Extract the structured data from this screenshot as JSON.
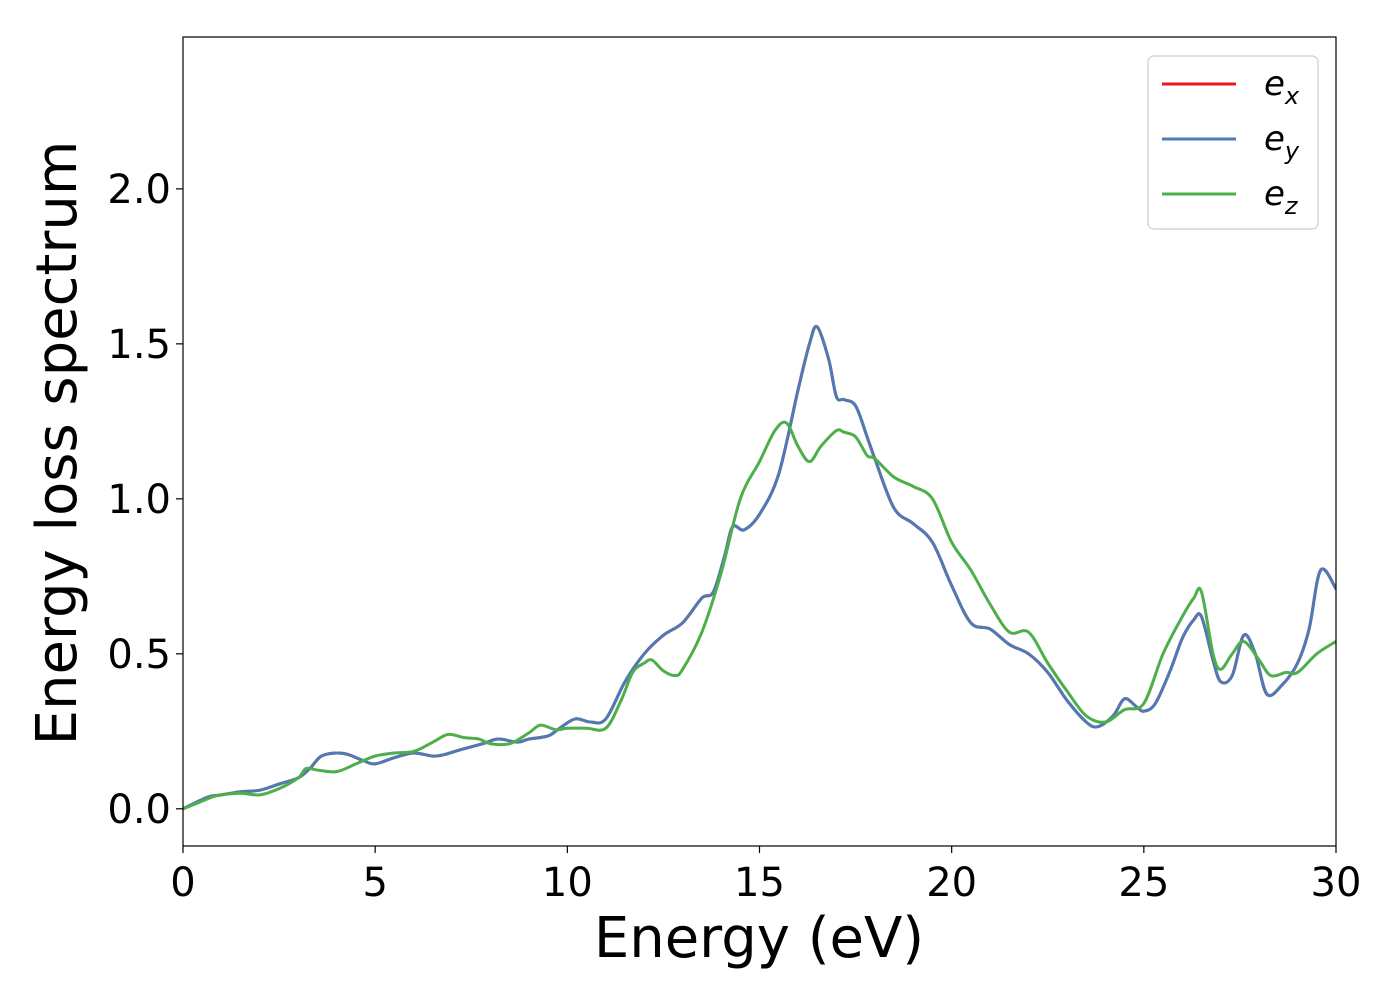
{
  "chart_data": {
    "type": "line",
    "xlabel": "Energy (eV)",
    "ylabel": "Energy loss spectrum",
    "xlim": [
      0,
      30
    ],
    "ylim": [
      -0.12,
      2.49
    ],
    "xticks": [
      0,
      5,
      10,
      15,
      20,
      25,
      30
    ],
    "yticks": [
      0.0,
      0.5,
      1.0,
      1.5,
      2.0
    ],
    "xtick_labels": [
      "0",
      "5",
      "10",
      "15",
      "20",
      "25",
      "30"
    ],
    "ytick_labels": [
      "0.0",
      "0.5",
      "1.0",
      "1.5",
      "2.0"
    ],
    "grid": false,
    "legend_position": "top-right",
    "series": [
      {
        "name": "e",
        "subscript": "x",
        "color": "#e41a1c",
        "x": [
          0,
          0.5,
          0.7,
          1.0,
          1.5,
          2.0,
          2.5,
          3.0,
          3.3,
          3.6,
          4.0,
          4.3,
          4.7,
          5.0,
          5.5,
          6.0,
          6.5,
          6.8,
          7.2,
          7.8,
          8.2,
          8.7,
          9.0,
          9.5,
          9.8,
          10.2,
          10.6,
          11.0,
          11.5,
          12.0,
          12.5,
          13.0,
          13.5,
          13.8,
          14.1,
          14.3,
          14.6,
          15.0,
          15.5,
          16.0,
          16.3,
          16.5,
          16.8,
          17.0,
          17.2,
          17.5,
          17.8,
          18.0,
          18.5,
          19.0,
          19.5,
          20.0,
          20.5,
          21.0,
          21.5,
          22.0,
          22.5,
          23.0,
          23.5,
          23.8,
          24.2,
          24.5,
          24.8,
          25.0,
          25.3,
          25.7,
          26.0,
          26.3,
          26.5,
          26.8,
          27.0,
          27.3,
          27.6,
          27.9,
          28.2,
          28.6,
          29.0,
          29.3,
          29.6,
          30.0
        ],
        "y": [
          0.0,
          0.03,
          0.04,
          0.045,
          0.055,
          0.06,
          0.08,
          0.1,
          0.13,
          0.17,
          0.18,
          0.175,
          0.155,
          0.145,
          0.165,
          0.18,
          0.17,
          0.175,
          0.19,
          0.21,
          0.225,
          0.215,
          0.225,
          0.235,
          0.26,
          0.29,
          0.28,
          0.29,
          0.41,
          0.5,
          0.56,
          0.6,
          0.68,
          0.7,
          0.82,
          0.91,
          0.9,
          0.95,
          1.08,
          1.35,
          1.5,
          1.555,
          1.45,
          1.33,
          1.32,
          1.3,
          1.2,
          1.13,
          0.97,
          0.92,
          0.86,
          0.72,
          0.6,
          0.58,
          0.53,
          0.5,
          0.44,
          0.35,
          0.28,
          0.265,
          0.3,
          0.355,
          0.33,
          0.315,
          0.34,
          0.45,
          0.55,
          0.61,
          0.62,
          0.48,
          0.41,
          0.43,
          0.56,
          0.5,
          0.37,
          0.4,
          0.47,
          0.58,
          0.77,
          0.71
        ]
      },
      {
        "name": "e",
        "subscript": "y",
        "color": "#4e7ab5",
        "x": [
          0,
          0.5,
          0.7,
          1.0,
          1.5,
          2.0,
          2.5,
          3.0,
          3.3,
          3.6,
          4.0,
          4.3,
          4.7,
          5.0,
          5.5,
          6.0,
          6.5,
          6.8,
          7.2,
          7.8,
          8.2,
          8.7,
          9.0,
          9.5,
          9.8,
          10.2,
          10.6,
          11.0,
          11.5,
          12.0,
          12.5,
          13.0,
          13.5,
          13.8,
          14.1,
          14.3,
          14.6,
          15.0,
          15.5,
          16.0,
          16.3,
          16.5,
          16.8,
          17.0,
          17.2,
          17.5,
          17.8,
          18.0,
          18.5,
          19.0,
          19.5,
          20.0,
          20.5,
          21.0,
          21.5,
          22.0,
          22.5,
          23.0,
          23.5,
          23.8,
          24.2,
          24.5,
          24.8,
          25.0,
          25.3,
          25.7,
          26.0,
          26.3,
          26.5,
          26.8,
          27.0,
          27.3,
          27.6,
          27.9,
          28.2,
          28.6,
          29.0,
          29.3,
          29.6,
          30.0
        ],
        "y": [
          0.0,
          0.03,
          0.04,
          0.045,
          0.055,
          0.06,
          0.08,
          0.1,
          0.13,
          0.17,
          0.18,
          0.175,
          0.155,
          0.145,
          0.165,
          0.18,
          0.17,
          0.175,
          0.19,
          0.21,
          0.225,
          0.215,
          0.225,
          0.235,
          0.26,
          0.29,
          0.28,
          0.29,
          0.41,
          0.5,
          0.56,
          0.6,
          0.68,
          0.7,
          0.82,
          0.91,
          0.9,
          0.95,
          1.08,
          1.35,
          1.5,
          1.555,
          1.45,
          1.33,
          1.32,
          1.3,
          1.2,
          1.13,
          0.97,
          0.92,
          0.86,
          0.72,
          0.6,
          0.58,
          0.53,
          0.5,
          0.44,
          0.35,
          0.28,
          0.265,
          0.3,
          0.355,
          0.33,
          0.315,
          0.34,
          0.45,
          0.55,
          0.61,
          0.62,
          0.48,
          0.41,
          0.43,
          0.56,
          0.5,
          0.37,
          0.4,
          0.47,
          0.58,
          0.77,
          0.71
        ]
      },
      {
        "name": "e",
        "subscript": "z",
        "color": "#4daf4a",
        "x": [
          0,
          0.5,
          0.8,
          1.0,
          1.5,
          2.0,
          2.5,
          3.0,
          3.2,
          3.5,
          4.0,
          4.5,
          5.0,
          5.5,
          6.0,
          6.5,
          6.9,
          7.3,
          7.7,
          8.0,
          8.5,
          9.0,
          9.3,
          9.7,
          10.0,
          10.5,
          11.0,
          11.4,
          11.7,
          12.0,
          12.2,
          12.5,
          12.8,
          13.0,
          13.5,
          14.0,
          14.5,
          15.0,
          15.4,
          15.7,
          16.0,
          16.3,
          16.6,
          17.0,
          17.2,
          17.5,
          17.8,
          18.0,
          18.5,
          19.0,
          19.5,
          20.0,
          20.5,
          21.0,
          21.5,
          22.0,
          22.5,
          23.0,
          23.5,
          24.0,
          24.5,
          25.0,
          25.5,
          26.0,
          26.3,
          26.5,
          26.8,
          27.0,
          27.3,
          27.6,
          28.0,
          28.3,
          28.7,
          29.0,
          29.5,
          30.0
        ],
        "y": [
          0.0,
          0.025,
          0.04,
          0.045,
          0.05,
          0.045,
          0.065,
          0.1,
          0.13,
          0.125,
          0.12,
          0.145,
          0.17,
          0.18,
          0.185,
          0.215,
          0.24,
          0.23,
          0.225,
          0.21,
          0.21,
          0.245,
          0.27,
          0.255,
          0.26,
          0.26,
          0.26,
          0.35,
          0.44,
          0.47,
          0.48,
          0.445,
          0.43,
          0.45,
          0.57,
          0.76,
          1.0,
          1.12,
          1.22,
          1.245,
          1.17,
          1.12,
          1.17,
          1.22,
          1.215,
          1.2,
          1.14,
          1.13,
          1.07,
          1.04,
          1.0,
          0.86,
          0.77,
          0.66,
          0.57,
          0.57,
          0.47,
          0.38,
          0.3,
          0.28,
          0.32,
          0.34,
          0.5,
          0.62,
          0.68,
          0.7,
          0.5,
          0.45,
          0.5,
          0.54,
          0.48,
          0.43,
          0.44,
          0.44,
          0.5,
          0.54
        ]
      }
    ]
  }
}
